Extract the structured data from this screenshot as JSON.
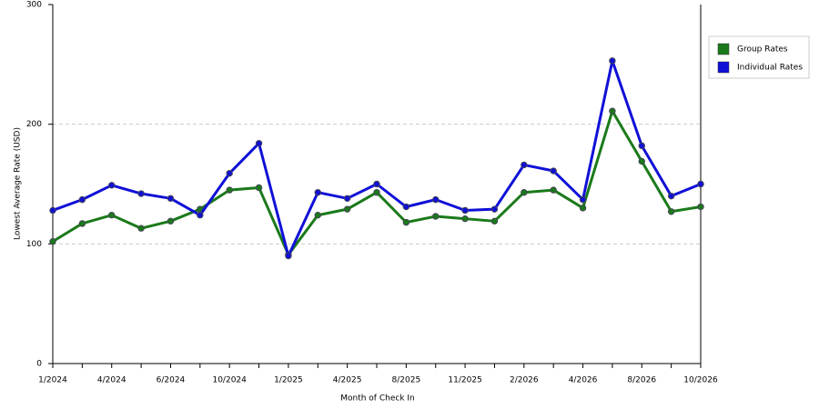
{
  "chart_data": {
    "type": "line",
    "x_label": "Month of Check In",
    "y_label": "Lowest Average Rate (USD)",
    "categories": [
      "1/2024",
      null,
      "4/2024",
      null,
      "6/2024",
      null,
      "10/2024",
      null,
      "1/2025",
      null,
      "4/2025",
      null,
      "8/2025",
      null,
      "11/2025",
      null,
      "2/2026",
      null,
      "4/2026",
      null,
      "8/2026",
      null,
      "10/2026"
    ],
    "series": [
      {
        "name": "Group Rates",
        "color": "#1a7a1a",
        "values": [
          102,
          117,
          124,
          113,
          119,
          129,
          145,
          147,
          91,
          124,
          129,
          143,
          118,
          123,
          121,
          119,
          143,
          145,
          130,
          211,
          169,
          127,
          131
        ]
      },
      {
        "name": "Individual Rates",
        "color": "#1010d8",
        "values": [
          128,
          137,
          149,
          142,
          138,
          124,
          159,
          184,
          90,
          143,
          138,
          150,
          131,
          137,
          128,
          129,
          166,
          161,
          137,
          253,
          182,
          140,
          150
        ]
      }
    ],
    "ylim": [
      0,
      300
    ],
    "yticks": [
      0,
      100,
      200,
      300
    ],
    "grid": true,
    "legend": "right"
  }
}
